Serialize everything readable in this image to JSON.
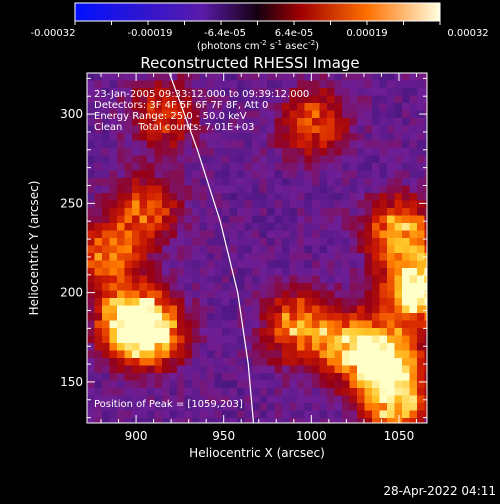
{
  "colorbar": {
    "ticks": [
      "-0.00032",
      "-0.00019",
      "-6.4e-05",
      "6.4e-05",
      "0.00019",
      "0.00032"
    ],
    "unit_main": "(photons cm",
    "unit_sup1": "-2",
    "unit_mid": " s",
    "unit_sup2": "-1",
    "unit_mid2": " asec",
    "unit_sup3": "-2",
    "unit_end": ")"
  },
  "chart_data": {
    "type": "heatmap",
    "title": "Reconstructed RHESSI Image",
    "xlabel": "Heliocentric X (arcsec)",
    "ylabel": "Heliocentric Y (arcsec)",
    "xlim": [
      872,
      1066
    ],
    "ylim": [
      127,
      323
    ],
    "x_ticks": [
      900,
      950,
      1000,
      1050
    ],
    "y_ticks": [
      150,
      200,
      250,
      300
    ],
    "color_range": [
      -0.00032,
      0.00032
    ],
    "annotations": [
      "23-Jan-2005 09:33:12.000 to 09:39:12.000",
      "Detectors: 3F 4F 5F 6F 7F 8F, Att 0",
      "Energy Range: 25.0 - 50.0 keV",
      "Clean     Total counts: 7.01E+03"
    ],
    "peak_label": "Position of Peak = [1059,203]",
    "peak": [
      1059,
      203
    ],
    "bright_regions": [
      {
        "x": 897,
        "y": 185,
        "level": 0.75
      },
      {
        "x": 908,
        "y": 178,
        "level": 0.6
      },
      {
        "x": 885,
        "y": 222,
        "level": 0.45
      },
      {
        "x": 905,
        "y": 248,
        "level": 0.4
      },
      {
        "x": 1040,
        "y": 162,
        "level": 0.75
      },
      {
        "x": 1020,
        "y": 172,
        "level": 0.6
      },
      {
        "x": 1059,
        "y": 203,
        "level": 0.95
      },
      {
        "x": 1048,
        "y": 235,
        "level": 0.55
      },
      {
        "x": 990,
        "y": 182,
        "level": 0.5
      },
      {
        "x": 1000,
        "y": 295,
        "level": 0.4
      },
      {
        "x": 915,
        "y": 300,
        "level": 0.35
      },
      {
        "x": 1045,
        "y": 140,
        "level": 0.6
      }
    ],
    "limb_arc": [
      [
        919,
        323
      ],
      [
        935,
        280
      ],
      [
        948,
        240
      ],
      [
        958,
        200
      ],
      [
        964,
        160
      ],
      [
        967,
        127
      ]
    ]
  },
  "footer": {
    "timestamp": "28-Apr-2022 04:11"
  }
}
